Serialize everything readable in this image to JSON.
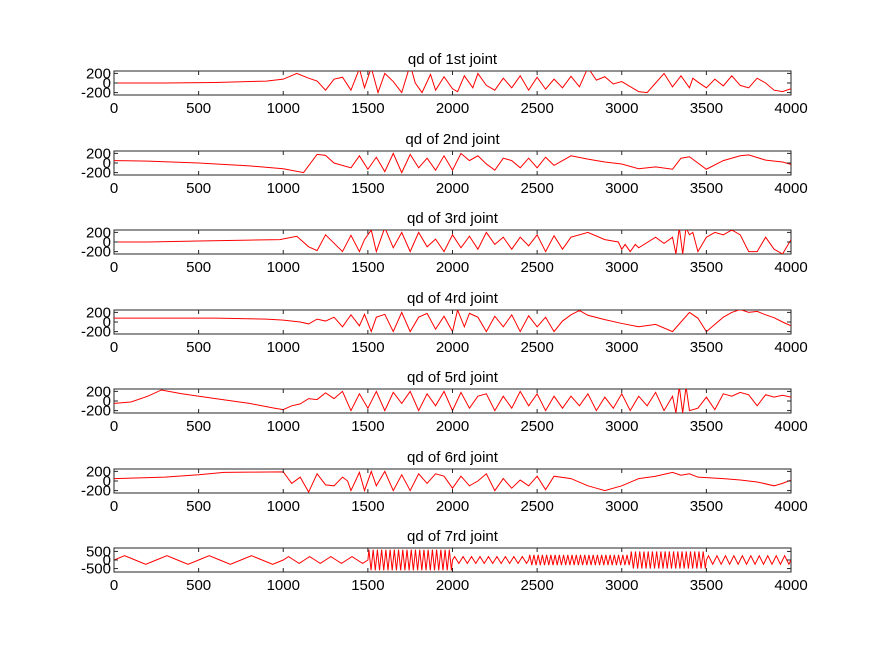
{
  "chart_data": [
    {
      "type": "line",
      "title": "qd of 1st joint",
      "xlim": [
        0,
        4000
      ],
      "ylim": [
        -250,
        250
      ],
      "xticks": [
        "0",
        "500",
        "1000",
        "1500",
        "2000",
        "2500",
        "3000",
        "3500",
        "4000"
      ],
      "yticks": [
        200,
        0,
        -200
      ],
      "yticklabels": [
        "200",
        "0",
        "-200"
      ],
      "color": "#ff0000",
      "series": [
        {
          "x": [
            0,
            300,
            600,
            900,
            1000,
            1080,
            1150,
            1200,
            1250,
            1300,
            1350,
            1400,
            1450,
            1480,
            1520,
            1560,
            1600,
            1650,
            1700,
            1750,
            1780,
            1820,
            1870,
            1900,
            1950,
            2000,
            2030,
            2070,
            2120,
            2150,
            2200,
            2250,
            2300,
            2350,
            2400,
            2450,
            2500,
            2550,
            2600,
            2650,
            2700,
            2750,
            2800,
            2850,
            2900,
            2950,
            3000,
            3100,
            3150,
            3200,
            3250,
            3300,
            3350,
            3400,
            3420,
            3450,
            3500,
            3550,
            3600,
            3650,
            3700,
            3750,
            3800,
            3850,
            3900,
            3950,
            4000
          ],
          "y": [
            0,
            0,
            10,
            40,
            80,
            200,
            100,
            40,
            -150,
            80,
            120,
            -150,
            300,
            -100,
            320,
            -200,
            200,
            30,
            -200,
            380,
            0,
            -200,
            180,
            -150,
            130,
            -120,
            -180,
            150,
            -100,
            200,
            -50,
            -150,
            100,
            -100,
            150,
            -150,
            120,
            -130,
            80,
            -100,
            140,
            -80,
            320,
            60,
            130,
            -20,
            30,
            -180,
            -200,
            0,
            200,
            -80,
            150,
            -100,
            100,
            20,
            -100,
            80,
            -60,
            150,
            -50,
            -100,
            100,
            0,
            -150,
            -180,
            -120
          ]
        }
      ]
    },
    {
      "type": "line",
      "title": "qd of 2nd joint",
      "xlim": [
        0,
        4000
      ],
      "ylim": [
        -250,
        250
      ],
      "xticks": [
        "0",
        "500",
        "1000",
        "1500",
        "2000",
        "2500",
        "3000",
        "3500",
        "4000"
      ],
      "yticks": [
        200,
        0,
        -200
      ],
      "yticklabels": [
        "200",
        "0",
        "-200"
      ],
      "color": "#ff0000",
      "series": [
        {
          "x": [
            0,
            200,
            500,
            800,
            1000,
            1120,
            1200,
            1250,
            1300,
            1400,
            1450,
            1500,
            1550,
            1600,
            1650,
            1700,
            1750,
            1800,
            1850,
            1900,
            1950,
            2000,
            2050,
            2100,
            2150,
            2200,
            2250,
            2300,
            2350,
            2400,
            2450,
            2500,
            2550,
            2600,
            2700,
            2800,
            2900,
            3000,
            3100,
            3200,
            3300,
            3350,
            3400,
            3500,
            3600,
            3700,
            3750,
            3850,
            3950,
            4000
          ],
          "y": [
            50,
            40,
            0,
            -60,
            -120,
            -200,
            180,
            160,
            0,
            -100,
            150,
            -130,
            120,
            -180,
            200,
            -200,
            180,
            -100,
            100,
            -150,
            150,
            -150,
            200,
            50,
            150,
            -20,
            -150,
            100,
            50,
            -100,
            100,
            -100,
            120,
            -50,
            150,
            80,
            20,
            -20,
            -120,
            -80,
            -130,
            100,
            130,
            -130,
            50,
            150,
            170,
            60,
            20,
            -30
          ]
        }
      ]
    },
    {
      "type": "line",
      "title": "qd of 3rd joint",
      "xlim": [
        0,
        4000
      ],
      "ylim": [
        -250,
        250
      ],
      "xticks": [
        "0",
        "500",
        "1000",
        "1500",
        "2000",
        "2500",
        "3000",
        "3500",
        "4000"
      ],
      "yticks": [
        200,
        0,
        -200
      ],
      "yticklabels": [
        "200",
        "0",
        "-200"
      ],
      "color": "#ff0000",
      "series": [
        {
          "x": [
            0,
            200,
            500,
            800,
            980,
            1080,
            1150,
            1200,
            1250,
            1350,
            1400,
            1450,
            1480,
            1520,
            1550,
            1600,
            1650,
            1700,
            1750,
            1800,
            1850,
            1900,
            1950,
            2000,
            2050,
            2100,
            2150,
            2200,
            2250,
            2300,
            2350,
            2400,
            2450,
            2500,
            2550,
            2600,
            2650,
            2700,
            2800,
            2900,
            2980,
            3000,
            3020,
            3050,
            3080,
            3100,
            3200,
            3250,
            3300,
            3320,
            3340,
            3360,
            3380,
            3400,
            3420,
            3450,
            3500,
            3550,
            3600,
            3650,
            3700,
            3750,
            3800,
            3850,
            3900,
            3950,
            4000
          ],
          "y": [
            0,
            0,
            20,
            40,
            50,
            120,
            -100,
            -180,
            150,
            -200,
            140,
            -200,
            50,
            250,
            -200,
            300,
            -120,
            200,
            -200,
            200,
            -100,
            60,
            -200,
            150,
            -120,
            120,
            -150,
            200,
            -50,
            100,
            -150,
            100,
            -80,
            150,
            -200,
            130,
            -150,
            100,
            200,
            50,
            0,
            -150,
            -50,
            -200,
            -50,
            -120,
            100,
            -30,
            100,
            -250,
            300,
            -250,
            300,
            150,
            200,
            -200,
            100,
            200,
            150,
            250,
            150,
            -200,
            -200,
            100,
            -150,
            -250,
            50
          ]
        }
      ]
    },
    {
      "type": "line",
      "title": "qd of 4rd joint",
      "xlim": [
        0,
        4000
      ],
      "ylim": [
        -250,
        250
      ],
      "xticks": [
        "0",
        "500",
        "1000",
        "1500",
        "2000",
        "2500",
        "3000",
        "3500",
        "4000"
      ],
      "yticks": [
        200,
        0,
        -200
      ],
      "yticklabels": [
        "200",
        "0",
        "-200"
      ],
      "color": "#ff0000",
      "series": [
        {
          "x": [
            0,
            300,
            600,
            900,
            1000,
            1100,
            1150,
            1200,
            1250,
            1300,
            1350,
            1400,
            1450,
            1480,
            1520,
            1550,
            1600,
            1650,
            1700,
            1750,
            1800,
            1850,
            1900,
            1950,
            2000,
            2030,
            2070,
            2100,
            2150,
            2200,
            2250,
            2300,
            2350,
            2400,
            2450,
            2500,
            2550,
            2600,
            2650,
            2700,
            2750,
            2800,
            2900,
            3000,
            3100,
            3200,
            3300,
            3350,
            3400,
            3450,
            3500,
            3550,
            3600,
            3650,
            3700,
            3750,
            3800,
            3850,
            3900,
            3950,
            4000
          ],
          "y": [
            80,
            80,
            80,
            60,
            40,
            0,
            -40,
            60,
            20,
            100,
            -100,
            150,
            -80,
            160,
            -200,
            100,
            160,
            -200,
            200,
            -200,
            100,
            180,
            -150,
            120,
            -200,
            250,
            -100,
            180,
            100,
            -200,
            120,
            -100,
            150,
            -200,
            130,
            -100,
            100,
            -200,
            20,
            150,
            240,
            140,
            50,
            -30,
            -100,
            -50,
            -200,
            0,
            200,
            80,
            -200,
            -50,
            100,
            200,
            260,
            200,
            220,
            150,
            90,
            0,
            -80
          ]
        }
      ]
    },
    {
      "type": "line",
      "title": "qd of 5rd joint",
      "xlim": [
        0,
        4000
      ],
      "ylim": [
        -250,
        250
      ],
      "xticks": [
        "0",
        "500",
        "1000",
        "1500",
        "2000",
        "2500",
        "3000",
        "3500",
        "4000"
      ],
      "yticks": [
        200,
        0,
        -200
      ],
      "yticklabels": [
        "200",
        "0",
        "-200"
      ],
      "color": "#ff0000",
      "series": [
        {
          "x": [
            0,
            100,
            200,
            280,
            400,
            600,
            800,
            950,
            1000,
            1050,
            1100,
            1150,
            1200,
            1250,
            1300,
            1350,
            1400,
            1450,
            1500,
            1550,
            1600,
            1650,
            1700,
            1750,
            1800,
            1850,
            1900,
            1950,
            2000,
            2050,
            2100,
            2150,
            2200,
            2250,
            2300,
            2350,
            2400,
            2450,
            2500,
            2550,
            2600,
            2650,
            2700,
            2750,
            2800,
            2850,
            2900,
            2950,
            3000,
            3050,
            3100,
            3150,
            3200,
            3250,
            3300,
            3320,
            3340,
            3360,
            3380,
            3400,
            3450,
            3500,
            3550,
            3600,
            3650,
            3700,
            3750,
            3800,
            3850,
            3900,
            3950,
            4000
          ],
          "y": [
            -50,
            -20,
            100,
            230,
            150,
            50,
            -50,
            -150,
            -180,
            -100,
            -60,
            50,
            30,
            170,
            50,
            200,
            -200,
            150,
            -150,
            200,
            -200,
            180,
            -50,
            200,
            -200,
            150,
            -100,
            200,
            -200,
            180,
            -150,
            100,
            150,
            -200,
            100,
            -150,
            200,
            -100,
            150,
            -200,
            100,
            -150,
            100,
            -100,
            150,
            -200,
            80,
            -150,
            150,
            -200,
            100,
            -100,
            180,
            -200,
            100,
            -250,
            300,
            -250,
            300,
            -200,
            -150,
            80,
            -180,
            150,
            100,
            180,
            130,
            -100,
            130,
            80,
            120,
            80
          ]
        }
      ]
    },
    {
      "type": "line",
      "title": "qd of 6rd joint",
      "xlim": [
        0,
        4000
      ],
      "ylim": [
        -250,
        250
      ],
      "xticks": [
        "0",
        "500",
        "1000",
        "1500",
        "2000",
        "2500",
        "3000",
        "3500",
        "4000"
      ],
      "yticks": [
        200,
        0,
        -200
      ],
      "yticklabels": [
        "200",
        "0",
        "-200"
      ],
      "color": "#ff0000",
      "series": [
        {
          "x": [
            0,
            100,
            300,
            500,
            650,
            800,
            1000,
            1050,
            1100,
            1150,
            1200,
            1250,
            1300,
            1350,
            1380,
            1400,
            1450,
            1480,
            1520,
            1550,
            1600,
            1650,
            1700,
            1750,
            1800,
            1850,
            1900,
            1950,
            2000,
            2050,
            2100,
            2150,
            2200,
            2250,
            2300,
            2350,
            2400,
            2450,
            2500,
            2550,
            2600,
            2700,
            2800,
            2850,
            2900,
            3000,
            3100,
            3200,
            3300,
            3350,
            3400,
            3450,
            3500,
            3600,
            3700,
            3800,
            3900,
            3950,
            4000
          ],
          "y": [
            50,
            60,
            80,
            130,
            180,
            185,
            190,
            -50,
            80,
            -230,
            150,
            -80,
            -100,
            80,
            0,
            -200,
            180,
            -200,
            200,
            -100,
            200,
            -200,
            130,
            -200,
            150,
            -50,
            150,
            100,
            -150,
            100,
            -100,
            0,
            150,
            -200,
            50,
            -150,
            20,
            -100,
            100,
            -180,
            100,
            50,
            -100,
            -150,
            -200,
            -100,
            50,
            100,
            180,
            120,
            150,
            80,
            70,
            50,
            20,
            -20,
            -100,
            -50,
            20
          ]
        }
      ]
    },
    {
      "type": "line",
      "title": "qd of 7rd joint",
      "xlim": [
        0,
        4000
      ],
      "ylim": [
        -700,
        700
      ],
      "xticks": [
        "0",
        "500",
        "1000",
        "1500",
        "2000",
        "2500",
        "3000",
        "3500",
        "4000"
      ],
      "yticks": [
        500,
        0,
        -500
      ],
      "yticklabels": [
        "500",
        "0",
        "-500"
      ],
      "color": "#ff0000",
      "segments": [
        {
          "x0": 0,
          "x1": 1000,
          "period": 250,
          "amp": 250
        },
        {
          "x0": 1000,
          "x1": 1500,
          "period": 125,
          "amp": 200
        },
        {
          "x0": 1500,
          "x1": 2000,
          "period": 25,
          "amp": 600
        },
        {
          "x0": 2000,
          "x1": 2450,
          "period": 50,
          "amp": 200
        },
        {
          "x0": 2450,
          "x1": 3050,
          "period": 25,
          "amp": 300
        },
        {
          "x0": 3050,
          "x1": 3500,
          "period": 25,
          "amp": 500
        },
        {
          "x0": 3500,
          "x1": 4000,
          "period": 50,
          "amp": 250
        }
      ]
    }
  ]
}
